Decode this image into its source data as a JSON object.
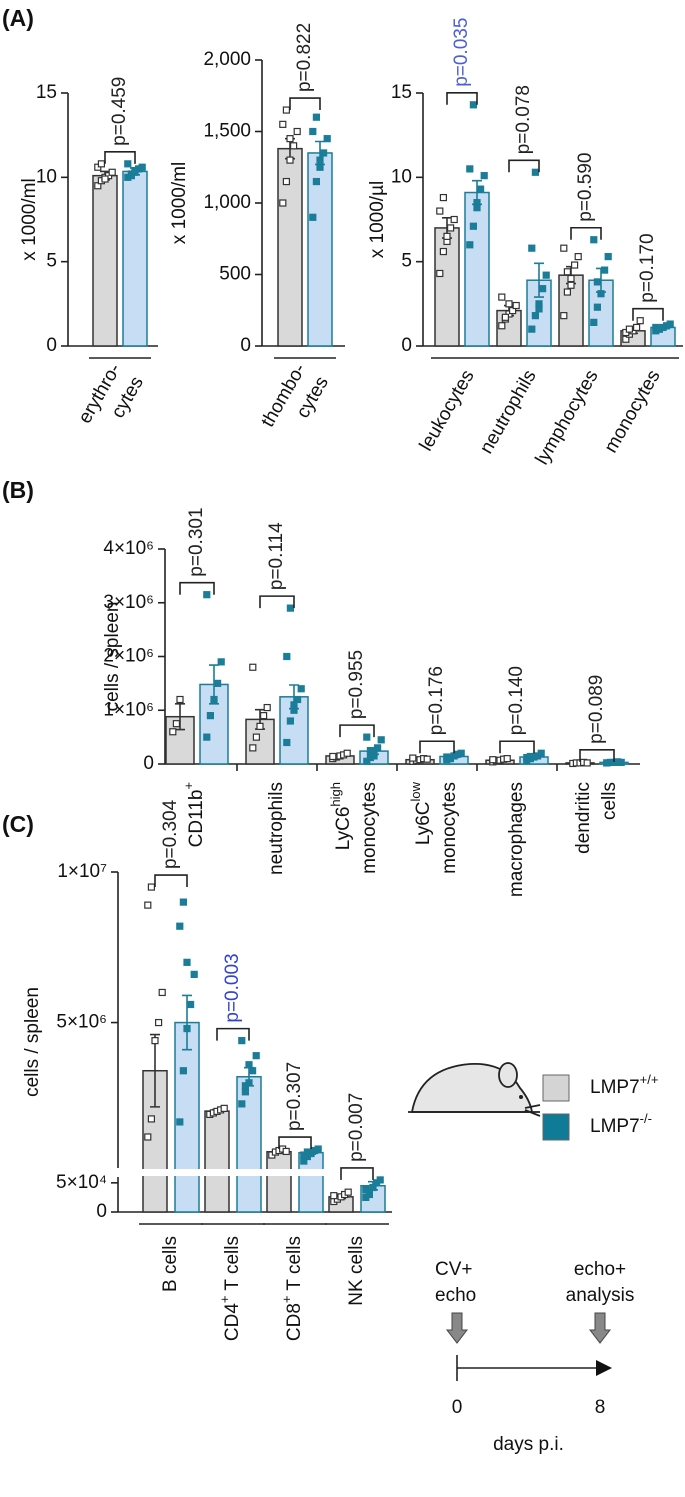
{
  "panel_labels": [
    "(A)",
    "(B)",
    "(C)"
  ],
  "legend": [
    {
      "name": "LMP7",
      "sup": "+/+",
      "color": "#d4d4d4"
    },
    {
      "name": "LMP7",
      "sup": "-/-",
      "color": "#0f7b97"
    }
  ],
  "timeline": {
    "events": [
      {
        "lines": [
          "CV+",
          "echo"
        ]
      },
      {
        "lines": [
          "echo+",
          "analysis"
        ]
      }
    ],
    "ticks": [
      0,
      8
    ],
    "xlabel": "days p.i."
  },
  "chart_data": [
    {
      "type": "bar",
      "ylabel": "x 1000/ml",
      "ylim": [
        0,
        15
      ],
      "yticks": [
        0,
        5,
        10,
        15
      ],
      "categories": [
        [
          [
            "erythro-"
          ],
          [
            "cytes"
          ]
        ]
      ],
      "series": [
        {
          "color": "#d9d9d9",
          "edge": "#333333",
          "point_fill": "#ffffff",
          "values": [
            10.1
          ],
          "errors": [
            0.25
          ],
          "points": [
            [
              9.5,
              9.8,
              10.0,
              10.1,
              10.3,
              10.6,
              10.8,
              9.9
            ]
          ]
        },
        {
          "color": "#c7ddf4",
          "edge": "#1b7d98",
          "point_fill": "#1b7d98",
          "values": [
            10.35
          ],
          "errors": [
            0.2
          ],
          "points": [
            [
              10.0,
              10.2,
              10.3,
              10.5,
              10.6,
              10.8,
              10.1,
              10.4
            ]
          ]
        }
      ],
      "p_values": [
        {
          "label": "p=0.459",
          "color": "#222222"
        }
      ]
    },
    {
      "type": "bar",
      "ylabel": "x 1000/ml",
      "ylim": [
        0,
        2000
      ],
      "yticks": [
        0,
        500,
        {
          "value": 1000,
          "label": "1,000"
        },
        {
          "value": 1500,
          "label": "1,500"
        },
        {
          "value": 2000,
          "label": "2,000"
        }
      ],
      "categories": [
        [
          [
            "thombo-"
          ],
          [
            "cytes"
          ]
        ]
      ],
      "series": [
        {
          "color": "#d9d9d9",
          "edge": "#333333",
          "point_fill": "#ffffff",
          "values": [
            1380
          ],
          "errors": [
            70
          ],
          "points": [
            [
              1000,
              1150,
              1300,
              1400,
              1500,
              1550,
              1650,
              1450
            ]
          ]
        },
        {
          "color": "#c7ddf4",
          "edge": "#1b7d98",
          "point_fill": "#1b7d98",
          "values": [
            1350
          ],
          "errors": [
            80
          ],
          "points": [
            [
              900,
              1150,
              1250,
              1350,
              1450,
              1500,
              1600,
              1300
            ]
          ]
        }
      ],
      "p_values": [
        {
          "label": "p=0.822",
          "color": "#222222"
        }
      ]
    },
    {
      "type": "bar",
      "ylabel": "x 1000/µl",
      "ylim": [
        0,
        15
      ],
      "yticks": [
        0,
        5,
        10,
        15
      ],
      "categories": [
        [
          [
            "leukocytes"
          ]
        ],
        [
          [
            "neutrophils"
          ]
        ],
        [
          [
            "lymphocytes"
          ]
        ],
        [
          [
            "monocytes"
          ]
        ]
      ],
      "series": [
        {
          "color": "#d9d9d9",
          "edge": "#333333",
          "point_fill": "#ffffff",
          "values": [
            7.0,
            2.1,
            4.2,
            0.9
          ],
          "errors": [
            0.6,
            0.3,
            0.5,
            0.15
          ],
          "points": [
            [
              4.3,
              5.6,
              6.2,
              7.0,
              7.5,
              8.0,
              8.8,
              6.5
            ],
            [
              1.2,
              1.6,
              1.9,
              2.1,
              2.4,
              2.9,
              1.7,
              2.5
            ],
            [
              1.8,
              3.2,
              4.0,
              4.8,
              5.3,
              5.8,
              4.4,
              3.6
            ],
            [
              0.4,
              0.7,
              0.9,
              1.1,
              1.5,
              0.8,
              1.0
            ]
          ]
        },
        {
          "color": "#c7ddf4",
          "edge": "#1b7d98",
          "point_fill": "#1b7d98",
          "values": [
            9.1,
            3.9,
            3.9,
            1.1
          ],
          "errors": [
            0.7,
            1.0,
            0.7,
            0.08
          ],
          "points": [
            [
              6.0,
              7.1,
              8.5,
              9.3,
              10.1,
              10.5,
              14.3,
              8.2
            ],
            [
              1.0,
              1.8,
              2.5,
              3.4,
              4.2,
              5.8,
              10.3,
              2.2
            ],
            [
              1.4,
              2.3,
              3.1,
              4.5,
              5.3,
              6.3,
              3.8
            ],
            [
              0.9,
              1.0,
              1.1,
              1.2,
              1.3,
              1.1,
              1.0
            ]
          ]
        }
      ],
      "p_values": [
        {
          "label": "p=0.035",
          "color": "#4b5fd6"
        },
        {
          "label": "p=0.078",
          "color": "#222222"
        },
        {
          "label": "p=0.590",
          "color": "#222222"
        },
        {
          "label": "p=0.170",
          "color": "#222222"
        }
      ]
    },
    {
      "type": "bar",
      "ylabel": "cells / spleen",
      "ylim": [
        0,
        4000000
      ],
      "yticks": [
        0,
        {
          "value": 1000000,
          "label": "1×10⁶"
        },
        {
          "value": 2000000,
          "label": "2×10⁶"
        },
        {
          "value": 3000000,
          "label": "3×10⁶"
        },
        {
          "value": 4000000,
          "label": "4×10⁶"
        }
      ],
      "categories": [
        [
          [
            "CD11b",
            {
              "sup": "+"
            }
          ]
        ],
        [
          [
            "neutrophils"
          ]
        ],
        [
          [
            "LyC6",
            {
              "sup": "high"
            }
          ],
          [
            "monocytes"
          ]
        ],
        [
          [
            "Ly6C",
            {
              "sup": "low"
            }
          ],
          [
            "monocytes"
          ]
        ],
        [
          [
            "macrophages"
          ]
        ],
        [
          [
            "dendritic"
          ],
          [
            "cells"
          ]
        ]
      ],
      "series": [
        {
          "color": "#d9d9d9",
          "edge": "#333333",
          "point_fill": "#ffffff",
          "values": [
            880000,
            830000,
            150000,
            80000,
            70000,
            20000
          ],
          "errors": [
            240000,
            180000,
            20000,
            10000,
            10000,
            3000
          ],
          "points": [
            [
              600000,
              750000,
              1200000
            ],
            [
              300000,
              500000,
              700000,
              900000,
              1050000,
              1800000
            ],
            [
              100000,
              130000,
              150000,
              170000,
              200000,
              140000
            ],
            [
              50000,
              70000,
              80000,
              100000,
              90000,
              110000
            ],
            [
              40000,
              60000,
              70000,
              90000,
              100000,
              80000
            ],
            [
              10000,
              20000,
              20000,
              30000,
              20000
            ]
          ]
        },
        {
          "color": "#c7ddf4",
          "edge": "#1b7d98",
          "point_fill": "#1b7d98",
          "values": [
            1480000,
            1250000,
            240000,
            140000,
            130000,
            30000
          ],
          "errors": [
            360000,
            220000,
            60000,
            20000,
            20000,
            4000
          ],
          "points": [
            [
              500000,
              900000,
              1200000,
              1500000,
              1900000,
              3150000
            ],
            [
              400000,
              800000,
              1000000,
              1200000,
              1400000,
              2000000,
              2900000,
              1100000
            ],
            [
              50000,
              120000,
              200000,
              300000,
              450000,
              500000,
              250000,
              150000
            ],
            [
              80000,
              120000,
              150000,
              180000,
              200000,
              130000,
              100000
            ],
            [
              70000,
              100000,
              130000,
              150000,
              200000,
              120000,
              140000
            ],
            [
              20000,
              30000,
              30000,
              40000,
              30000,
              20000
            ]
          ]
        }
      ],
      "p_values": [
        {
          "label": "p=0.301",
          "color": "#222222"
        },
        {
          "label": "p=0.114",
          "color": "#222222"
        },
        {
          "label": "p=0.955",
          "color": "#222222"
        },
        {
          "label": "p=0.176",
          "color": "#222222"
        },
        {
          "label": "p=0.140",
          "color": "#222222"
        },
        {
          "label": "p=0.089",
          "color": "#222222"
        }
      ]
    },
    {
      "type": "bar",
      "ylabel": "cells / spleen",
      "ylim": [
        170000,
        10000000
      ],
      "ylim_lower": [
        0,
        60000
      ],
      "yticks": [
        0,
        {
          "value": 50000,
          "label": "5×10⁴"
        },
        {
          "value": 5000000,
          "label": "5×10⁶"
        },
        {
          "value": 10000000,
          "label": "1×10⁷"
        }
      ],
      "categories": [
        [
          [
            "B cells"
          ]
        ],
        [
          [
            "CD4",
            {
              "sup": "+"
            },
            " T cells"
          ]
        ],
        [
          [
            "CD8",
            {
              "sup": "+"
            },
            " T cells"
          ]
        ],
        [
          [
            "NK cells"
          ]
        ]
      ],
      "series": [
        {
          "color": "#d9d9d9",
          "edge": "#333333",
          "point_fill": "#ffffff",
          "values": [
            3400000,
            2060000,
            710000,
            26000
          ],
          "errors": [
            1200000,
            50000,
            30000,
            3000
          ],
          "points": [
            [
              1200000,
              1800000,
              4400000,
              5000000,
              6000000,
              8900000,
              9500000
            ],
            [
              1950000,
              2000000,
              2050000,
              2100000,
              2150000
            ],
            [
              600000,
              700000,
              750000,
              800000,
              720000
            ],
            [
              18000,
              22000,
              26000,
              30000,
              34000,
              28000
            ]
          ]
        },
        {
          "color": "#c7ddf4",
          "edge": "#1b7d98",
          "point_fill": "#1b7d98",
          "values": [
            5000000,
            3200000,
            680000,
            45000
          ],
          "errors": [
            900000,
            300000,
            50000,
            7000
          ],
          "points": [
            [
              1700000,
              3400000,
              4800000,
              5600000,
              6600000,
              8200000,
              9000000,
              7000000
            ],
            [
              2300000,
              2700000,
              3000000,
              3400000,
              3900000,
              4400000,
              2900000,
              3600000
            ],
            [
              400000,
              550000,
              650000,
              750000,
              800000,
              600000,
              700000
            ],
            [
              25000,
              35000,
              42000,
              50000,
              55000,
              38000,
              30000
            ]
          ]
        }
      ],
      "p_values": [
        {
          "label": "p=0.304",
          "color": "#222222"
        },
        {
          "label": "p=0.003",
          "color": "#3344cc"
        },
        {
          "label": "p=0.307",
          "color": "#222222"
        },
        {
          "label": "p=0.007",
          "color": "#222222"
        }
      ]
    }
  ]
}
